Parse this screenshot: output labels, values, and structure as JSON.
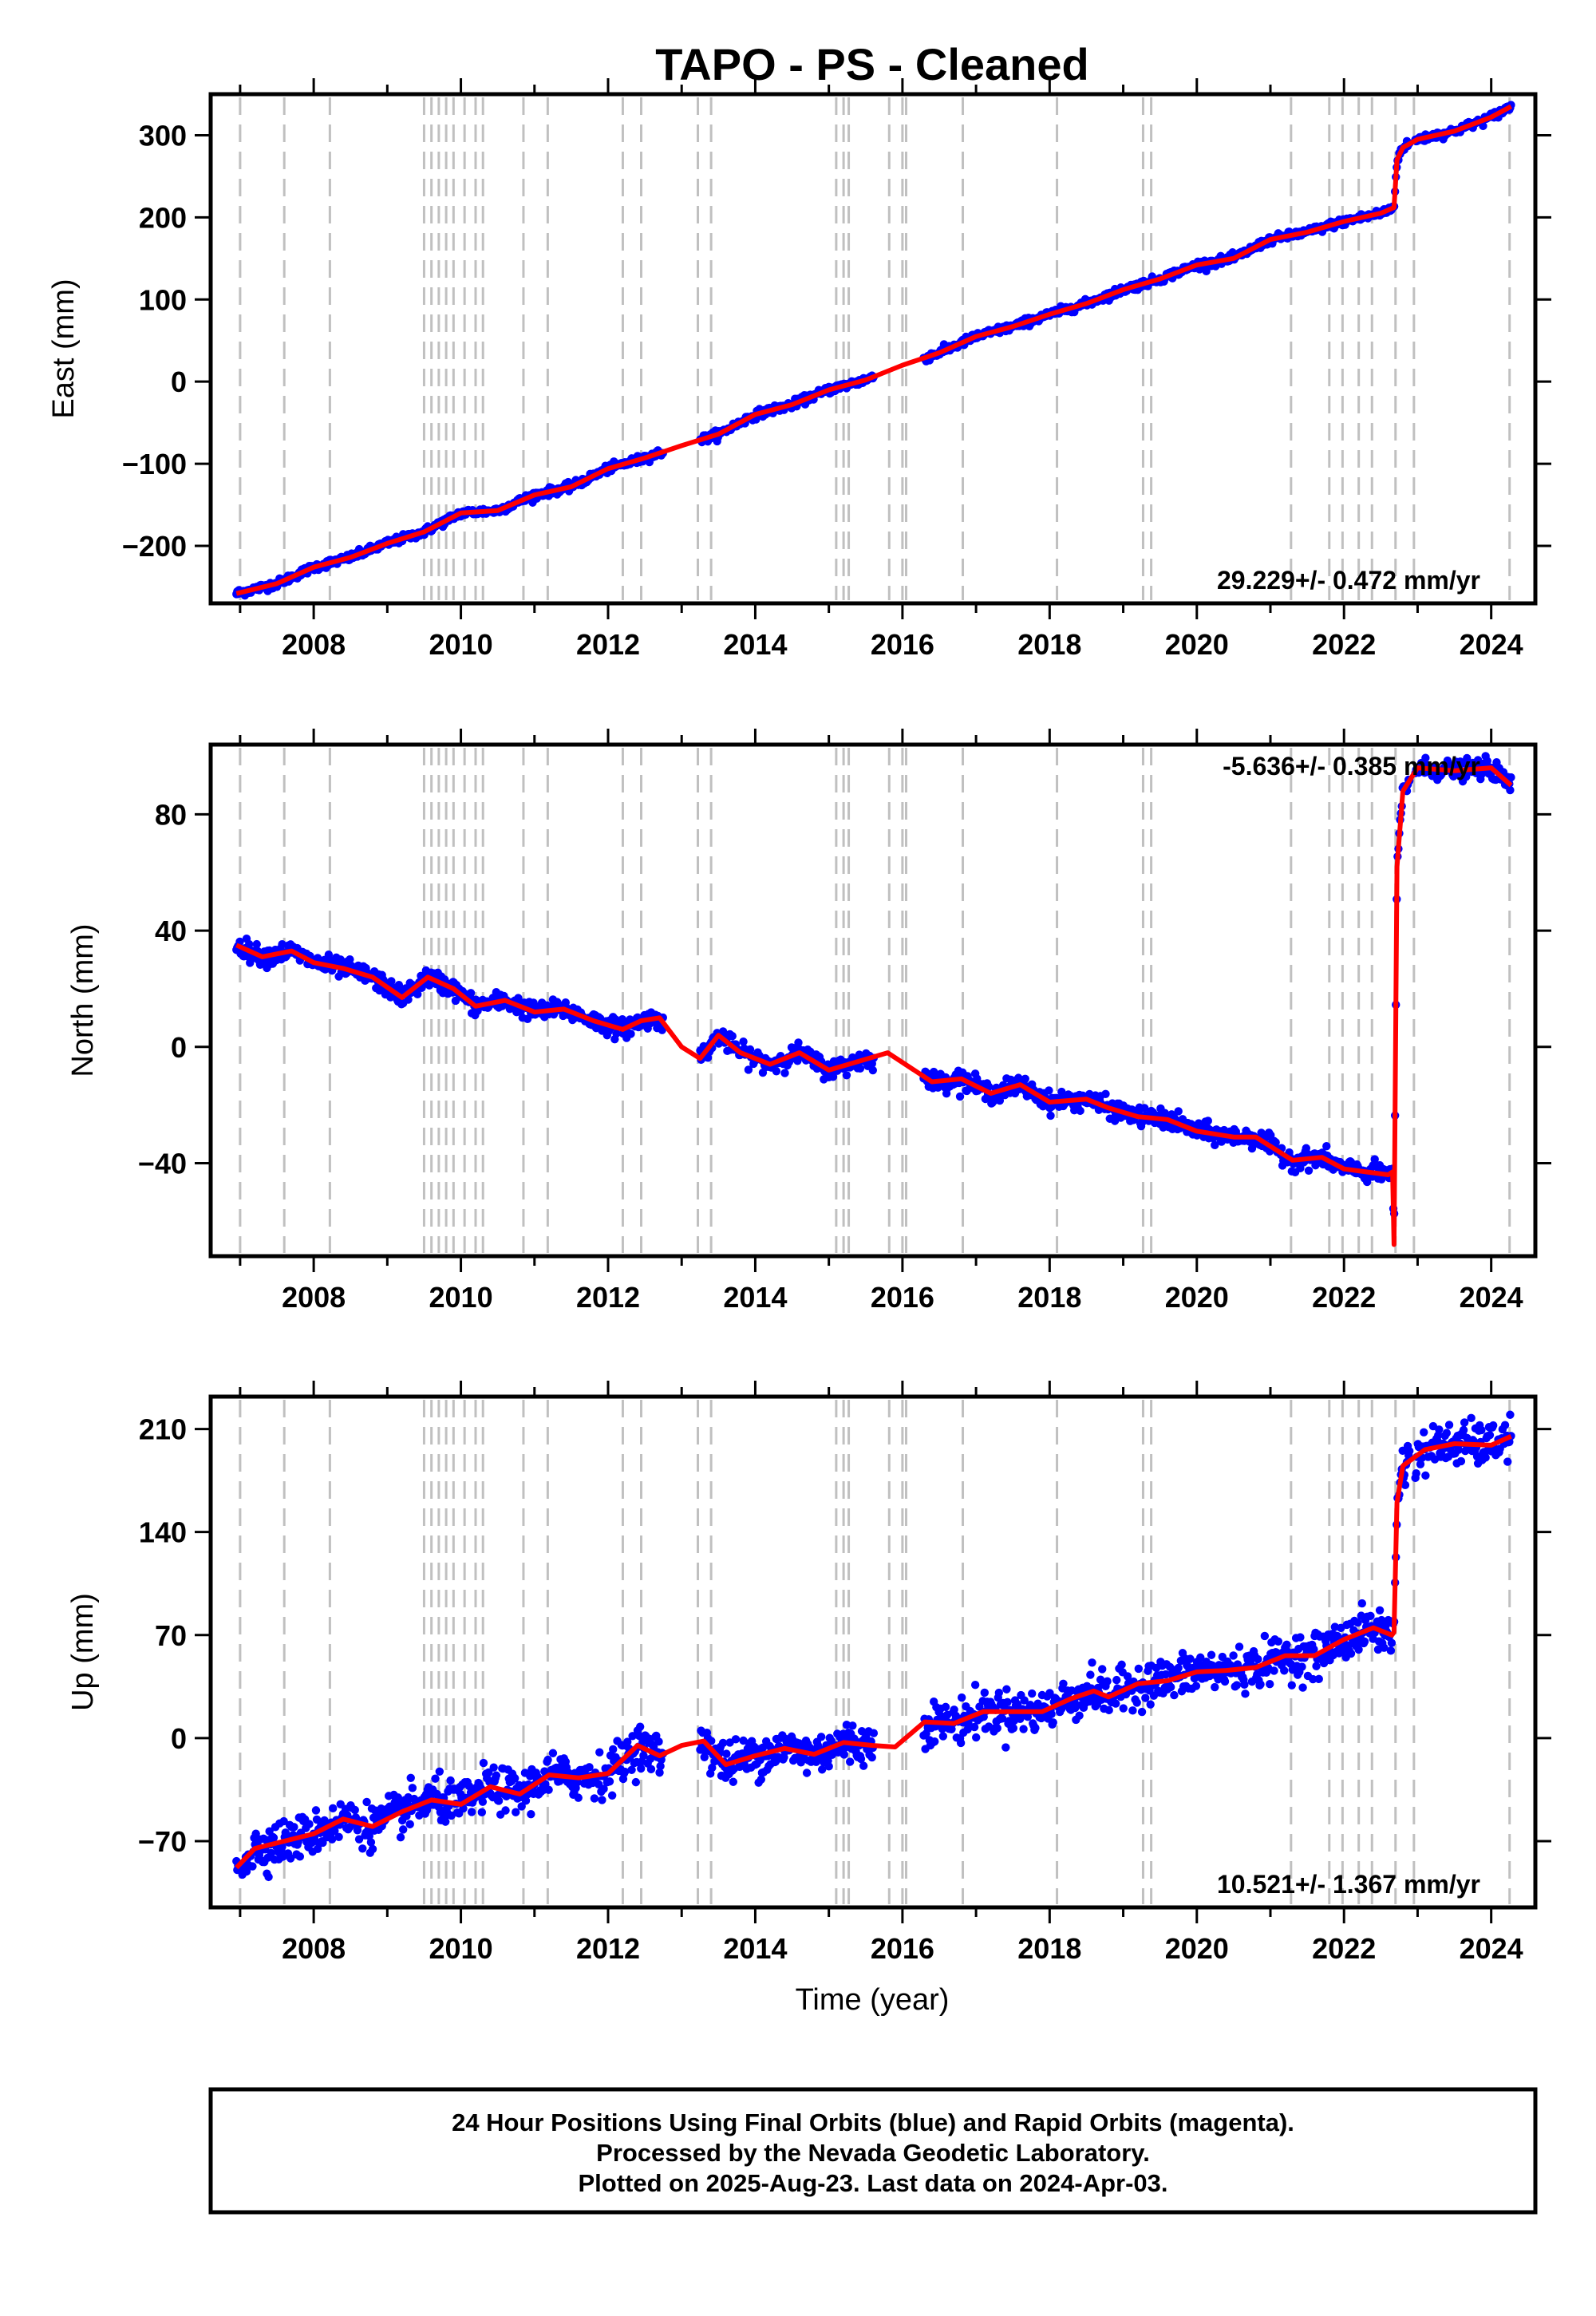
{
  "title": "TAPO  - PS - Cleaned",
  "colors": {
    "final_orbits": "#0000ff",
    "rapid_orbits": "#ff00ff",
    "model": "#ff0000",
    "event_lines": "#c0c0c0",
    "frame": "#000000"
  },
  "x_axis": {
    "label": "Time (year)",
    "range": [
      2006.6,
      2024.6
    ],
    "major_ticks": [
      "2008",
      "2010",
      "2012",
      "2014",
      "2016",
      "2018",
      "2020",
      "2022",
      "2024"
    ],
    "minor_tick_step_years": 1
  },
  "event_lines_years": [
    2007.0,
    2007.6,
    2008.22,
    2009.5,
    2009.6,
    2009.7,
    2009.8,
    2009.9,
    2010.05,
    2010.2,
    2010.3,
    2010.85,
    2011.18,
    2012.2,
    2012.45,
    2013.22,
    2013.4,
    2015.1,
    2015.2,
    2015.27,
    2015.82,
    2016.0,
    2016.05,
    2016.82,
    2018.1,
    2019.27,
    2019.38,
    2021.28,
    2021.8,
    2021.98,
    2022.2,
    2022.38,
    2022.7,
    2022.95,
    2024.25
  ],
  "footer": {
    "line1": "24 Hour Positions Using Final Orbits (blue) and Rapid Orbits (magenta).",
    "line2": "Processed by the Nevada Geodetic Laboratory.",
    "line3": "Plotted on 2025-Aug-23. Last data on 2024-Apr-03."
  },
  "chart_data": [
    {
      "type": "scatter",
      "component": "East",
      "ylabel": "East (mm)",
      "ylim": [
        -270,
        350
      ],
      "yticks": [
        -200,
        -100,
        0,
        100,
        200,
        300
      ],
      "ytick_labels": [
        "−200",
        "−100",
        "0",
        "100",
        "200",
        "300"
      ],
      "rate_text": "29.229+/- 0.472 mm/yr",
      "rate_position": "bottom-right",
      "grid": false,
      "series": [
        {
          "name": "Final Orbits",
          "style": "points",
          "approx_scatter_mm": 3,
          "x": [
            2006.95,
            2007.5,
            2008.0,
            2008.5,
            2009.0,
            2009.5,
            2010.0,
            2010.5,
            2011.0,
            2011.5,
            2012.0,
            2012.5,
            2013.0,
            2013.5,
            2014.0,
            2014.5,
            2015.0,
            2015.5,
            2016.0,
            2016.5,
            2017.0,
            2017.5,
            2018.0,
            2018.5,
            2019.0,
            2019.5,
            2020.0,
            2020.5,
            2021.0,
            2021.5,
            2022.0,
            2022.5,
            2022.68,
            2022.72,
            2022.8,
            2023.0,
            2023.5,
            2024.0,
            2024.27
          ],
          "y": [
            -258,
            -246,
            -226,
            -214,
            -197,
            -183,
            -160,
            -157,
            -138,
            -128,
            -106,
            -93,
            -78,
            -64,
            -40,
            -28,
            -10,
            2,
            20,
            35,
            55,
            67,
            82,
            95,
            112,
            125,
            142,
            150,
            173,
            182,
            195,
            205,
            212,
            270,
            285,
            295,
            305,
            322,
            335
          ]
        },
        {
          "name": "Model",
          "style": "line",
          "x": [
            2006.95,
            2007.5,
            2008.0,
            2008.5,
            2009.0,
            2009.5,
            2010.0,
            2010.5,
            2011.0,
            2011.5,
            2012.0,
            2012.5,
            2013.0,
            2013.5,
            2014.0,
            2014.5,
            2015.0,
            2015.5,
            2016.0,
            2016.5,
            2017.0,
            2017.5,
            2018.0,
            2018.5,
            2019.0,
            2019.5,
            2020.0,
            2020.5,
            2021.0,
            2021.5,
            2022.0,
            2022.5,
            2022.68,
            2022.72,
            2022.8,
            2023.0,
            2023.5,
            2024.0,
            2024.27
          ],
          "y": [
            -258,
            -246,
            -226,
            -214,
            -197,
            -183,
            -160,
            -157,
            -138,
            -128,
            -106,
            -93,
            -78,
            -64,
            -40,
            -28,
            -10,
            2,
            20,
            35,
            55,
            67,
            82,
            95,
            112,
            125,
            142,
            150,
            173,
            182,
            195,
            205,
            212,
            270,
            285,
            295,
            305,
            322,
            335
          ]
        }
      ]
    },
    {
      "type": "scatter",
      "component": "North",
      "ylabel": "North (mm)",
      "ylim": [
        -72,
        104
      ],
      "yticks": [
        -40,
        0,
        40,
        80
      ],
      "ytick_labels": [
        "−40",
        "0",
        "40",
        "80"
      ],
      "rate_text": "-5.636+/- 0.385 mm/yr",
      "rate_position": "top-right",
      "grid": false,
      "series": [
        {
          "name": "Final Orbits",
          "style": "points",
          "approx_scatter_mm": 2,
          "x": [
            2006.95,
            2007.3,
            2007.7,
            2008.0,
            2008.4,
            2008.8,
            2009.2,
            2009.55,
            2009.9,
            2010.2,
            2010.6,
            2011.0,
            2011.4,
            2011.8,
            2012.2,
            2012.45,
            2012.7,
            2013.0,
            2013.25,
            2013.5,
            2013.8,
            2014.2,
            2014.6,
            2015.0,
            2015.4,
            2015.8,
            2016.4,
            2016.8,
            2017.2,
            2017.6,
            2018.0,
            2018.5,
            2018.8,
            2019.2,
            2019.6,
            2020.0,
            2020.5,
            2020.8,
            2021.3,
            2021.7,
            2022.0,
            2022.3,
            2022.6,
            2022.66,
            2022.68,
            2022.72,
            2022.8,
            2023.0,
            2023.5,
            2024.0,
            2024.27
          ],
          "y": [
            35,
            31,
            33,
            29,
            27,
            24,
            17,
            24,
            20,
            14,
            16,
            12,
            13,
            9,
            6,
            9,
            10,
            0,
            -4,
            4,
            -2,
            -6,
            -2,
            -8,
            -5,
            -2,
            -12,
            -11,
            -16,
            -13,
            -19,
            -18,
            -21,
            -24,
            -25,
            -29,
            -31,
            -31,
            -39,
            -38,
            -42,
            -43,
            -44,
            -43,
            -68,
            62,
            88,
            96,
            95,
            96,
            90
          ]
        },
        {
          "name": "Model",
          "style": "line",
          "x": [
            2006.95,
            2007.3,
            2007.7,
            2008.0,
            2008.4,
            2008.8,
            2009.2,
            2009.55,
            2009.9,
            2010.2,
            2010.6,
            2011.0,
            2011.4,
            2011.8,
            2012.2,
            2012.45,
            2012.7,
            2013.0,
            2013.25,
            2013.5,
            2013.8,
            2014.2,
            2014.6,
            2015.0,
            2015.4,
            2015.8,
            2016.4,
            2016.8,
            2017.2,
            2017.6,
            2018.0,
            2018.5,
            2018.8,
            2019.2,
            2019.6,
            2020.0,
            2020.5,
            2020.8,
            2021.3,
            2021.7,
            2022.0,
            2022.3,
            2022.6,
            2022.66,
            2022.68,
            2022.72,
            2022.8,
            2023.0,
            2023.5,
            2024.0,
            2024.27
          ],
          "y": [
            35,
            31,
            33,
            29,
            27,
            24,
            17,
            24,
            20,
            14,
            16,
            12,
            13,
            9,
            6,
            9,
            10,
            0,
            -4,
            4,
            -2,
            -6,
            -2,
            -8,
            -5,
            -2,
            -12,
            -11,
            -16,
            -13,
            -19,
            -18,
            -21,
            -24,
            -25,
            -29,
            -31,
            -31,
            -39,
            -38,
            -42,
            -43,
            -44,
            -43,
            -68,
            62,
            88,
            96,
            95,
            96,
            90
          ]
        }
      ]
    },
    {
      "type": "scatter",
      "component": "Up",
      "ylabel": "Up (mm)",
      "ylim": [
        -115,
        232
      ],
      "yticks": [
        -70,
        0,
        70,
        140,
        210
      ],
      "ytick_labels": [
        "−70",
        "0",
        "70",
        "140",
        "210"
      ],
      "rate_text": "10.521+/- 1.367 mm/yr",
      "rate_position": "bottom-right",
      "grid": false,
      "series": [
        {
          "name": "Final Orbits",
          "style": "points",
          "approx_scatter_mm": 9,
          "x": [
            2006.95,
            2007.2,
            2007.6,
            2008.0,
            2008.4,
            2008.8,
            2009.2,
            2009.6,
            2010.0,
            2010.4,
            2010.8,
            2011.2,
            2011.6,
            2012.0,
            2012.4,
            2012.7,
            2013.0,
            2013.3,
            2013.6,
            2014.0,
            2014.4,
            2014.8,
            2015.2,
            2015.6,
            2015.9,
            2016.3,
            2016.7,
            2017.1,
            2017.5,
            2017.9,
            2018.3,
            2018.6,
            2018.8,
            2019.2,
            2019.6,
            2020.0,
            2020.4,
            2020.8,
            2021.2,
            2021.6,
            2022.0,
            2022.4,
            2022.65,
            2022.68,
            2022.72,
            2022.8,
            2023.1,
            2023.5,
            2024.0,
            2024.27
          ],
          "y": [
            -88,
            -75,
            -70,
            -65,
            -55,
            -60,
            -50,
            -42,
            -45,
            -33,
            -38,
            -25,
            -27,
            -24,
            -5,
            -12,
            -5,
            -2,
            -18,
            -12,
            -7,
            -11,
            -3,
            -5,
            -6,
            11,
            10,
            18,
            18,
            18,
            27,
            32,
            28,
            37,
            39,
            45,
            46,
            48,
            56,
            56,
            67,
            75,
            70,
            72,
            160,
            185,
            196,
            200,
            199,
            205
          ]
        },
        {
          "name": "Model",
          "style": "line",
          "x": [
            2006.95,
            2007.2,
            2007.6,
            2008.0,
            2008.4,
            2008.8,
            2009.2,
            2009.6,
            2010.0,
            2010.4,
            2010.8,
            2011.2,
            2011.6,
            2012.0,
            2012.4,
            2012.7,
            2013.0,
            2013.3,
            2013.6,
            2014.0,
            2014.4,
            2014.8,
            2015.2,
            2015.6,
            2015.9,
            2016.3,
            2016.7,
            2017.1,
            2017.5,
            2017.9,
            2018.3,
            2018.6,
            2018.8,
            2019.2,
            2019.6,
            2020.0,
            2020.4,
            2020.8,
            2021.2,
            2021.6,
            2022.0,
            2022.4,
            2022.65,
            2022.68,
            2022.72,
            2022.8,
            2023.1,
            2023.5,
            2024.0,
            2024.27
          ],
          "y": [
            -88,
            -75,
            -70,
            -65,
            -55,
            -60,
            -50,
            -42,
            -45,
            -33,
            -38,
            -25,
            -27,
            -24,
            -5,
            -12,
            -5,
            -2,
            -18,
            -12,
            -7,
            -11,
            -3,
            -5,
            -6,
            11,
            10,
            18,
            18,
            18,
            27,
            32,
            28,
            37,
            39,
            45,
            46,
            48,
            56,
            56,
            67,
            75,
            70,
            72,
            160,
            185,
            196,
            200,
            199,
            205
          ]
        }
      ]
    }
  ]
}
